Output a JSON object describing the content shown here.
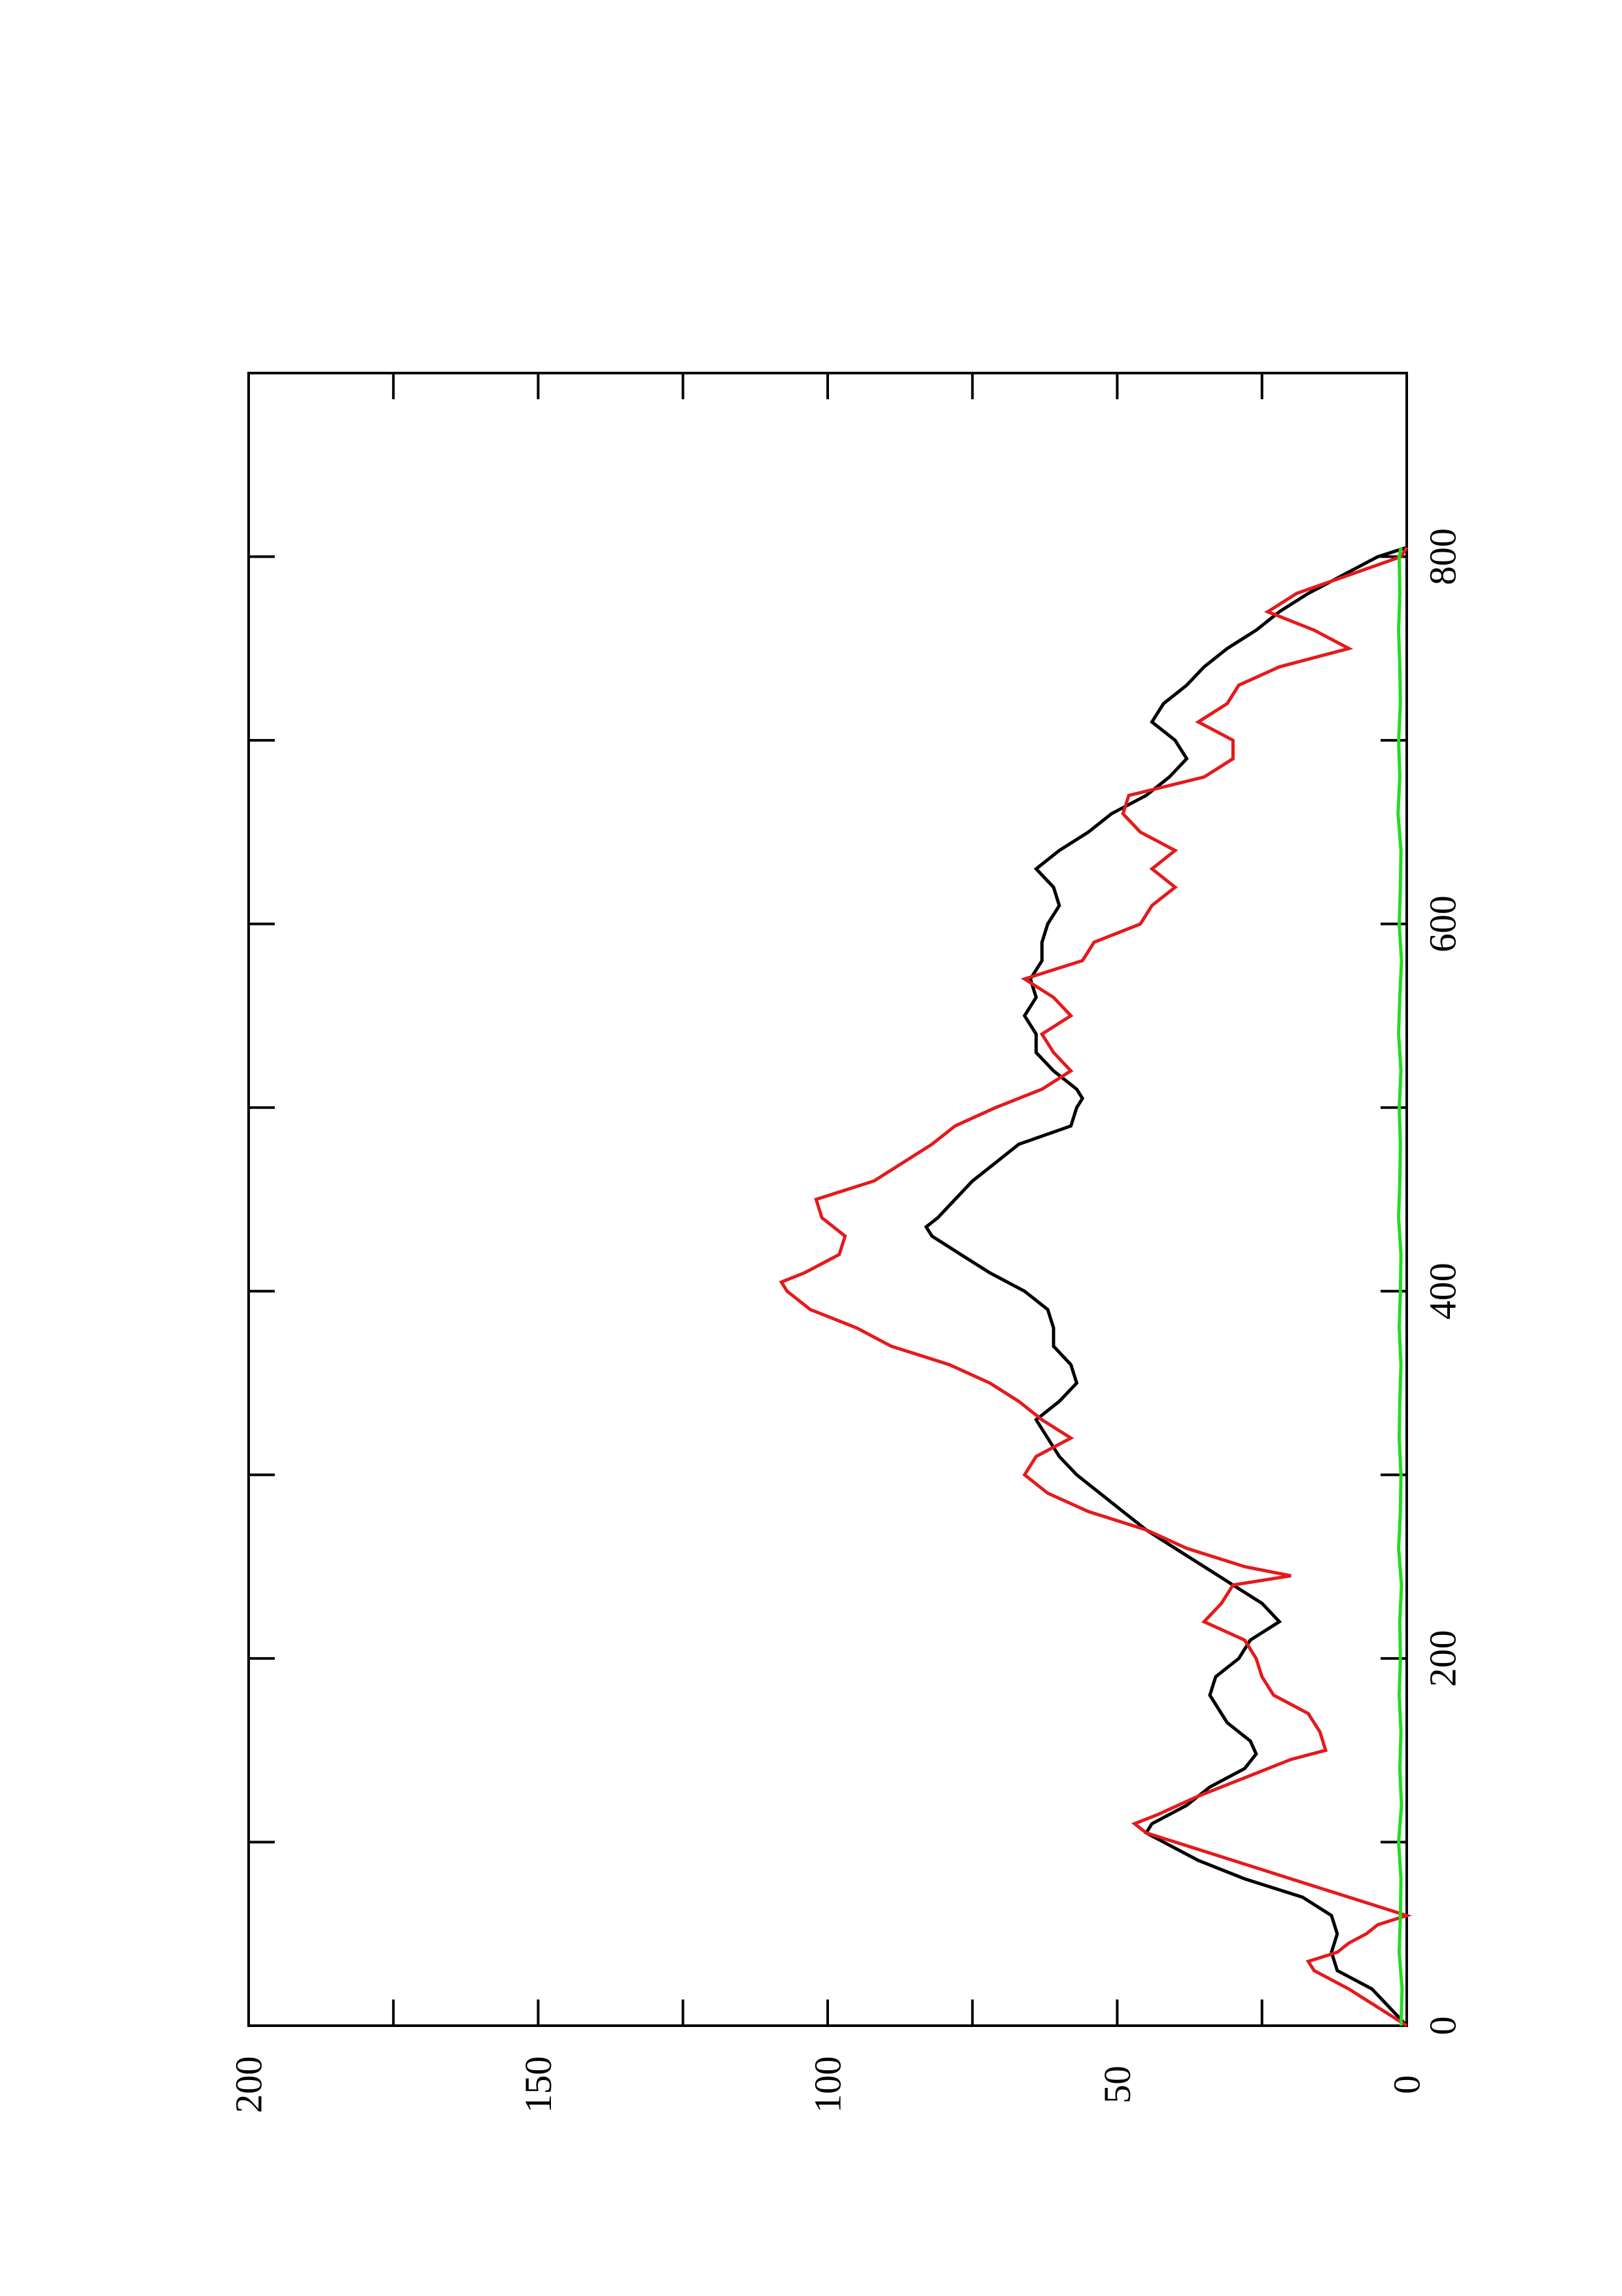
{
  "chart_data": {
    "type": "line",
    "orientation": "rotated-90-ccw",
    "title": "",
    "xlabel": "",
    "ylabel": "",
    "xlim": [
      0,
      900
    ],
    "ylim": [
      0,
      200
    ],
    "x_ticks": [
      0,
      200,
      400,
      600,
      800
    ],
    "x_tick_labels": [
      "0",
      "200",
      "400",
      "600",
      "800"
    ],
    "x_minor_ticks": [
      100,
      300,
      500,
      700
    ],
    "y_ticks": [
      0,
      50,
      100,
      150,
      200
    ],
    "y_tick_labels": [
      "0",
      "50",
      "100",
      "150",
      "200"
    ],
    "y_minor_ticks": [
      25,
      75,
      125,
      175
    ],
    "grid": false,
    "legend": "none",
    "series": [
      {
        "color": "#000000",
        "points": [
          [
            0,
            0
          ],
          [
            10,
            3
          ],
          [
            20,
            6
          ],
          [
            30,
            12
          ],
          [
            40,
            13
          ],
          [
            50,
            12
          ],
          [
            60,
            13
          ],
          [
            70,
            18
          ],
          [
            80,
            28
          ],
          [
            90,
            36
          ],
          [
            100,
            42
          ],
          [
            105,
            45
          ],
          [
            110,
            44
          ],
          [
            120,
            38
          ],
          [
            130,
            34
          ],
          [
            140,
            28
          ],
          [
            148,
            26
          ],
          [
            155,
            27
          ],
          [
            165,
            31
          ],
          [
            170,
            32
          ],
          [
            180,
            34
          ],
          [
            190,
            33
          ],
          [
            200,
            29
          ],
          [
            210,
            27
          ],
          [
            220,
            22
          ],
          [
            230,
            25
          ],
          [
            240,
            30
          ],
          [
            250,
            35
          ],
          [
            260,
            40
          ],
          [
            270,
            45
          ],
          [
            280,
            49
          ],
          [
            290,
            53
          ],
          [
            300,
            57
          ],
          [
            310,
            60
          ],
          [
            320,
            62
          ],
          [
            330,
            64
          ],
          [
            340,
            60
          ],
          [
            350,
            57
          ],
          [
            360,
            58
          ],
          [
            370,
            61
          ],
          [
            380,
            61
          ],
          [
            390,
            62
          ],
          [
            400,
            66
          ],
          [
            410,
            72
          ],
          [
            420,
            77
          ],
          [
            430,
            82
          ],
          [
            435,
            83
          ],
          [
            440,
            81
          ],
          [
            450,
            78
          ],
          [
            460,
            75
          ],
          [
            470,
            71
          ],
          [
            480,
            67
          ],
          [
            490,
            58
          ],
          [
            500,
            57
          ],
          [
            505,
            56
          ],
          [
            510,
            57
          ],
          [
            520,
            61
          ],
          [
            530,
            64
          ],
          [
            540,
            64
          ],
          [
            550,
            66
          ],
          [
            560,
            64
          ],
          [
            570,
            65
          ],
          [
            580,
            63
          ],
          [
            590,
            63
          ],
          [
            600,
            62
          ],
          [
            610,
            60
          ],
          [
            620,
            61
          ],
          [
            630,
            64
          ],
          [
            640,
            60
          ],
          [
            650,
            55
          ],
          [
            660,
            51
          ],
          [
            670,
            45
          ],
          [
            680,
            41
          ],
          [
            690,
            38
          ],
          [
            700,
            40
          ],
          [
            710,
            44
          ],
          [
            720,
            42
          ],
          [
            730,
            38
          ],
          [
            740,
            35
          ],
          [
            750,
            31
          ],
          [
            760,
            26
          ],
          [
            770,
            22
          ],
          [
            780,
            17
          ],
          [
            790,
            11
          ],
          [
            800,
            5
          ],
          [
            805,
            0
          ]
        ]
      },
      {
        "color": "#e41a1c",
        "points": [
          [
            0,
            0
          ],
          [
            10,
            5
          ],
          [
            20,
            10
          ],
          [
            25,
            13
          ],
          [
            30,
            16
          ],
          [
            35,
            17
          ],
          [
            40,
            12
          ],
          [
            45,
            10
          ],
          [
            50,
            7
          ],
          [
            55,
            5
          ],
          [
            60,
            0
          ],
          [
            70,
            10
          ],
          [
            80,
            20
          ],
          [
            90,
            30
          ],
          [
            100,
            40
          ],
          [
            105,
            45
          ],
          [
            110,
            47
          ],
          [
            115,
            43
          ],
          [
            125,
            36
          ],
          [
            135,
            28
          ],
          [
            145,
            20
          ],
          [
            150,
            14
          ],
          [
            160,
            15
          ],
          [
            170,
            17
          ],
          [
            175,
            20
          ],
          [
            180,
            23
          ],
          [
            190,
            25
          ],
          [
            200,
            26
          ],
          [
            210,
            28
          ],
          [
            220,
            35
          ],
          [
            230,
            32
          ],
          [
            240,
            30
          ],
          [
            245,
            20
          ],
          [
            250,
            28
          ],
          [
            260,
            38
          ],
          [
            270,
            45
          ],
          [
            280,
            55
          ],
          [
            290,
            62
          ],
          [
            300,
            66
          ],
          [
            310,
            64
          ],
          [
            320,
            58
          ],
          [
            330,
            63
          ],
          [
            340,
            67
          ],
          [
            350,
            72
          ],
          [
            360,
            79
          ],
          [
            370,
            89
          ],
          [
            380,
            95
          ],
          [
            390,
            103
          ],
          [
            400,
            107
          ],
          [
            405,
            108
          ],
          [
            410,
            104
          ],
          [
            420,
            98
          ],
          [
            430,
            97
          ],
          [
            440,
            101
          ],
          [
            450,
            102
          ],
          [
            460,
            92
          ],
          [
            470,
            87
          ],
          [
            480,
            82
          ],
          [
            490,
            78
          ],
          [
            500,
            71
          ],
          [
            510,
            63
          ],
          [
            520,
            58
          ],
          [
            530,
            61
          ],
          [
            540,
            63
          ],
          [
            550,
            58
          ],
          [
            560,
            61
          ],
          [
            570,
            66
          ],
          [
            580,
            56
          ],
          [
            590,
            54
          ],
          [
            600,
            46
          ],
          [
            610,
            44
          ],
          [
            620,
            40
          ],
          [
            630,
            44
          ],
          [
            640,
            40
          ],
          [
            650,
            46
          ],
          [
            660,
            49
          ],
          [
            670,
            48
          ],
          [
            680,
            35
          ],
          [
            690,
            30
          ],
          [
            700,
            30
          ],
          [
            710,
            36
          ],
          [
            720,
            31
          ],
          [
            730,
            29
          ],
          [
            740,
            22
          ],
          [
            750,
            10
          ],
          [
            760,
            16
          ],
          [
            770,
            24
          ],
          [
            780,
            19
          ],
          [
            790,
            10
          ],
          [
            800,
            1
          ],
          [
            805,
            0
          ]
        ]
      },
      {
        "color": "#22dd22",
        "points": [
          [
            0,
            1
          ],
          [
            20,
            0.8
          ],
          [
            40,
            1.3
          ],
          [
            60,
            1.1
          ],
          [
            80,
            1.0
          ],
          [
            100,
            1.4
          ],
          [
            120,
            0.9
          ],
          [
            140,
            1.2
          ],
          [
            160,
            1.0
          ],
          [
            180,
            1.3
          ],
          [
            200,
            1.1
          ],
          [
            220,
            1.2
          ],
          [
            240,
            0.9
          ],
          [
            260,
            1.4
          ],
          [
            280,
            1.1
          ],
          [
            300,
            1.0
          ],
          [
            320,
            1.3
          ],
          [
            340,
            1.2
          ],
          [
            360,
            1.0
          ],
          [
            380,
            1.3
          ],
          [
            400,
            1.1
          ],
          [
            420,
            1.0
          ],
          [
            440,
            1.4
          ],
          [
            460,
            1.2
          ],
          [
            480,
            1.1
          ],
          [
            500,
            1.3
          ],
          [
            520,
            1.0
          ],
          [
            540,
            1.4
          ],
          [
            560,
            1.2
          ],
          [
            580,
            0.9
          ],
          [
            600,
            1.3
          ],
          [
            620,
            1.1
          ],
          [
            640,
            1.0
          ],
          [
            660,
            1.5
          ],
          [
            680,
            1.2
          ],
          [
            700,
            1.4
          ],
          [
            720,
            1.1
          ],
          [
            740,
            1.2
          ],
          [
            760,
            1.4
          ],
          [
            780,
            1.2
          ],
          [
            800,
            1.3
          ],
          [
            805,
            1.0
          ]
        ]
      }
    ]
  }
}
